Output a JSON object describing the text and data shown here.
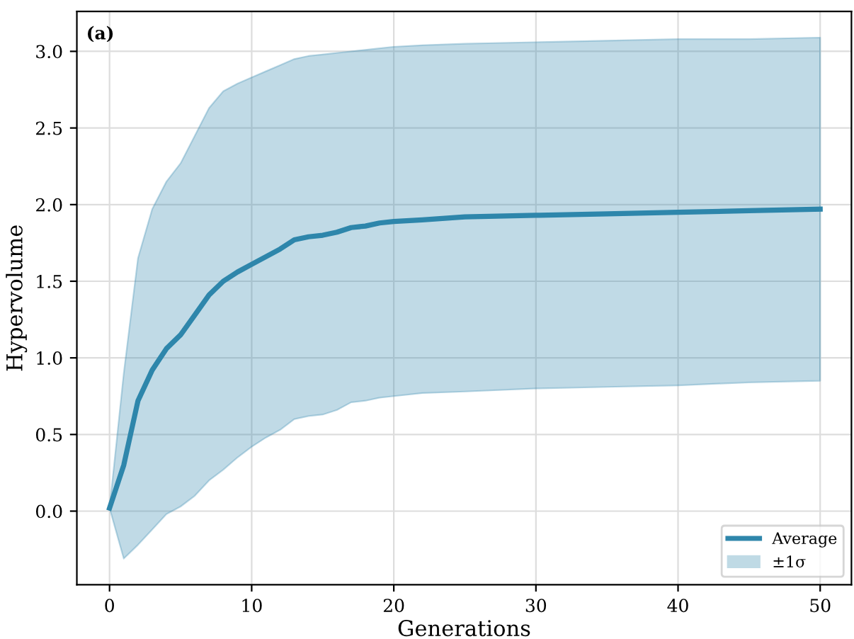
{
  "chart_data": {
    "type": "line",
    "xlabel": "Generations",
    "ylabel": "Hypervolume",
    "annotations": [
      "(a)",
      "±1σ"
    ],
    "x": [
      0,
      1,
      2,
      3,
      4,
      5,
      6,
      7,
      8,
      9,
      10,
      11,
      12,
      13,
      14,
      15,
      16,
      17,
      18,
      19,
      20,
      22,
      25,
      30,
      35,
      40,
      45,
      50
    ],
    "series": [
      {
        "name": "Average",
        "color": "#2e86ab",
        "values": [
          0.02,
          0.3,
          0.72,
          0.92,
          1.06,
          1.15,
          1.28,
          1.41,
          1.5,
          1.56,
          1.61,
          1.66,
          1.71,
          1.77,
          1.79,
          1.8,
          1.82,
          1.85,
          1.86,
          1.88,
          1.89,
          1.9,
          1.92,
          1.93,
          1.94,
          1.95,
          1.96,
          1.97
        ],
        "lower": [
          0.02,
          -0.31,
          -0.22,
          -0.12,
          -0.02,
          0.03,
          0.1,
          0.2,
          0.27,
          0.35,
          0.42,
          0.48,
          0.53,
          0.6,
          0.62,
          0.63,
          0.66,
          0.71,
          0.72,
          0.74,
          0.75,
          0.77,
          0.78,
          0.8,
          0.81,
          0.82,
          0.84,
          0.85
        ],
        "upper": [
          0.02,
          0.9,
          1.65,
          1.97,
          2.15,
          2.27,
          2.45,
          2.63,
          2.74,
          2.79,
          2.83,
          2.87,
          2.91,
          2.95,
          2.97,
          2.98,
          2.99,
          3.0,
          3.01,
          3.02,
          3.03,
          3.04,
          3.05,
          3.06,
          3.07,
          3.08,
          3.08,
          3.09
        ]
      }
    ],
    "xlim": [
      -2.3,
      52.2
    ],
    "ylim": [
      -0.48,
      3.26
    ],
    "xticks": [
      0,
      10,
      20,
      30,
      40,
      50
    ],
    "yticks": [
      {
        "value": 0,
        "label": "0.0"
      },
      0.5,
      {
        "value": 1,
        "label": "1.0"
      },
      1.5,
      {
        "value": 2,
        "label": "2.0"
      },
      2.5,
      {
        "value": 3,
        "label": "3.0"
      }
    ],
    "grid": true,
    "legend": "bottom right",
    "marker": "none",
    "line_style": "solid"
  }
}
